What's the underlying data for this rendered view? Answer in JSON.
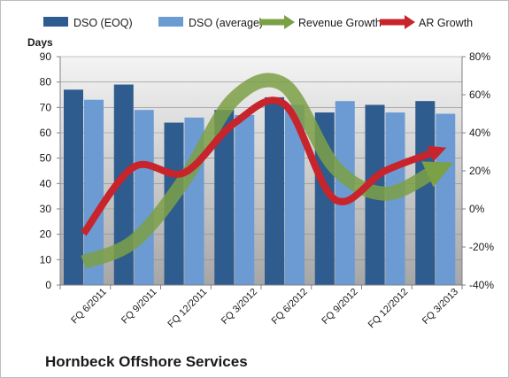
{
  "caption": "Hornbeck Offshore Services",
  "colors": {
    "dso_eoq": "#2e5c8e",
    "dso_avg": "#6b9bd2",
    "revenue_growth": "#7ba046",
    "ar_growth": "#c8242b",
    "plot_bg_top": "#f4f4f4",
    "plot_bg_bottom": "#a6a6a6"
  },
  "chart_data": {
    "type": "bar",
    "y_left_label": "Days",
    "categories": [
      "FQ 6/2011",
      "FQ 9/2011",
      "FQ 12/2011",
      "FQ 3/2012",
      "FQ 6/2012",
      "FQ 9/2012",
      "FQ 12/2012",
      "FQ 3/2013"
    ],
    "ylim_left": [
      0,
      90
    ],
    "yticks_left": [
      0,
      10,
      20,
      30,
      40,
      50,
      60,
      70,
      80,
      90
    ],
    "ylim_right": [
      -0.4,
      0.8
    ],
    "yticks_right": [
      "-40%",
      "-20%",
      "0%",
      "20%",
      "40%",
      "60%",
      "80%"
    ],
    "ytick_values_right": [
      -0.4,
      -0.2,
      0,
      0.2,
      0.4,
      0.6,
      0.8
    ],
    "legend_position": "top",
    "series": [
      {
        "name": "DSO (EOQ)",
        "kind": "bar",
        "axis": "left",
        "values": [
          77,
          79,
          64,
          69,
          74,
          68,
          71,
          72.5
        ]
      },
      {
        "name": "DSO (average)",
        "kind": "bar",
        "axis": "left",
        "values": [
          73,
          69,
          66,
          67,
          71,
          72.5,
          68,
          67.5
        ]
      },
      {
        "name": "Revenue Growth",
        "kind": "line-arrow",
        "axis": "right",
        "values": [
          -0.28,
          -0.17,
          0.15,
          0.58,
          0.65,
          0.22,
          0.08,
          0.2
        ]
      },
      {
        "name": "AR Growth",
        "kind": "line-arrow",
        "axis": "right",
        "values": [
          -0.13,
          0.22,
          0.19,
          0.45,
          0.55,
          0.05,
          0.2,
          0.3
        ]
      }
    ]
  }
}
